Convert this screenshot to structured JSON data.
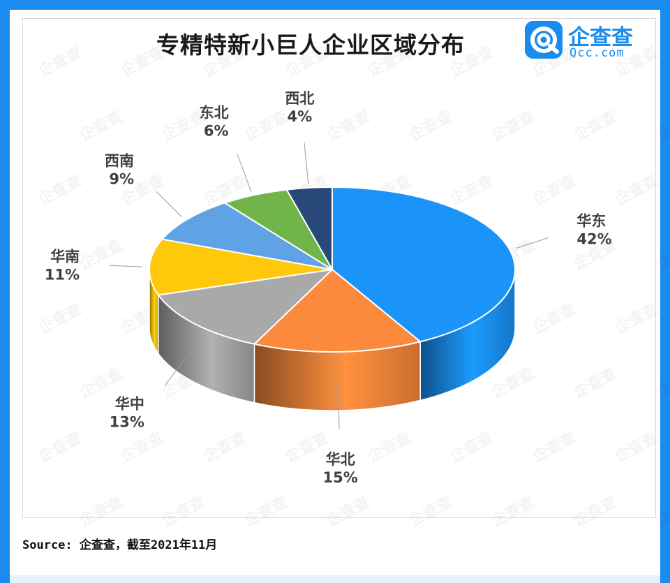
{
  "title": "专精特新小巨人企业区域分布",
  "logo": {
    "name": "企查查",
    "domain": "Qcc.com"
  },
  "source": "Source: 企查查，截至2021年11月",
  "watermark": "企查查",
  "colors": {
    "background": "#1a8cf0",
    "accent": "#1a8cf0"
  },
  "chart_data": {
    "type": "pie",
    "three_d": true,
    "title": "专精特新小巨人企业区域分布",
    "slices": [
      {
        "label": "华东",
        "value": 42,
        "display": "42%",
        "color": "#1a94f8"
      },
      {
        "label": "华北",
        "value": 15,
        "display": "15%",
        "color": "#fb8a3c"
      },
      {
        "label": "华中",
        "value": 13,
        "display": "13%",
        "color": "#a9a9a9"
      },
      {
        "label": "华南",
        "value": 11,
        "display": "11%",
        "color": "#ffc80a"
      },
      {
        "label": "西南",
        "value": 9,
        "display": "9%",
        "color": "#5fa3e4"
      },
      {
        "label": "东北",
        "value": 6,
        "display": "6%",
        "color": "#70b44a"
      },
      {
        "label": "西北",
        "value": 4,
        "display": "4%",
        "color": "#29487a"
      }
    ]
  }
}
